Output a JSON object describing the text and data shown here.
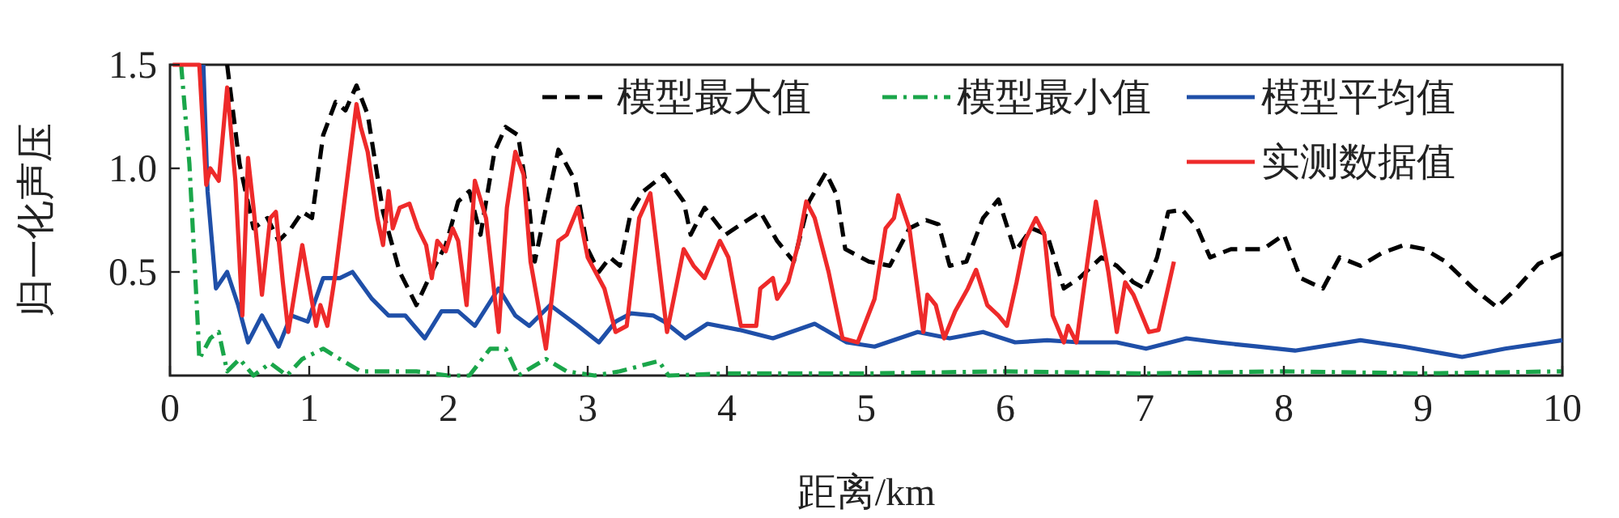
{
  "chart_data": {
    "type": "line",
    "xlabel": "距离/km",
    "ylabel": "归一化声压",
    "xlim": [
      0,
      10
    ],
    "ylim": [
      0,
      1.5
    ],
    "xticks": [
      0,
      1,
      2,
      3,
      4,
      5,
      6,
      7,
      8,
      9,
      10
    ],
    "yticks": [
      {
        "value": 0.5,
        "label": "0.5"
      },
      {
        "value": 1,
        "label": "1.0"
      },
      {
        "value": 1.5,
        "label": "1.5"
      }
    ],
    "legend": "top right",
    "grid": false,
    "series": [
      {
        "name": "模型最大值",
        "color": "#000000",
        "line_style": "dashed",
        "x": [
          0.41,
          0.5,
          0.6,
          0.7,
          0.78,
          0.87,
          0.95,
          1.02,
          1.1,
          1.19,
          1.26,
          1.34,
          1.42,
          1.53,
          1.65,
          1.77,
          1.88,
          1.98,
          2.07,
          2.15,
          2.23,
          2.33,
          2.41,
          2.5,
          2.58,
          2.62,
          2.7,
          2.79,
          2.91,
          3.0,
          3.08,
          3.16,
          3.23,
          3.31,
          3.4,
          3.55,
          3.69,
          3.74,
          3.84,
          3.99,
          4.1,
          4.24,
          4.36,
          4.48,
          4.59,
          4.71,
          4.79,
          4.85,
          5.02,
          5.17,
          5.31,
          5.43,
          5.52,
          5.6,
          5.72,
          5.84,
          5.95,
          6.07,
          6.19,
          6.3,
          6.42,
          6.53,
          6.69,
          6.8,
          6.92,
          7.0,
          7.09,
          7.17,
          7.27,
          7.38,
          7.47,
          7.62,
          7.73,
          7.85,
          8.0,
          8.12,
          8.28,
          8.4,
          8.55,
          8.7,
          8.86,
          9.01,
          9.16,
          9.36,
          9.53,
          9.67,
          9.83,
          10.0
        ],
        "values": [
          1.5,
          1.02,
          0.71,
          0.76,
          0.65,
          0.71,
          0.79,
          0.76,
          1.16,
          1.32,
          1.28,
          1.4,
          1.26,
          0.79,
          0.5,
          0.34,
          0.5,
          0.63,
          0.84,
          0.89,
          0.68,
          1.08,
          1.2,
          1.16,
          0.81,
          0.55,
          0.81,
          1.09,
          0.94,
          0.61,
          0.5,
          0.57,
          0.53,
          0.79,
          0.89,
          0.97,
          0.84,
          0.68,
          0.81,
          0.68,
          0.73,
          0.79,
          0.65,
          0.55,
          0.84,
          0.98,
          0.87,
          0.61,
          0.55,
          0.53,
          0.71,
          0.75,
          0.73,
          0.53,
          0.55,
          0.76,
          0.85,
          0.6,
          0.71,
          0.68,
          0.42,
          0.47,
          0.57,
          0.53,
          0.45,
          0.42,
          0.57,
          0.79,
          0.8,
          0.71,
          0.57,
          0.61,
          0.61,
          0.61,
          0.68,
          0.47,
          0.42,
          0.57,
          0.53,
          0.59,
          0.63,
          0.61,
          0.55,
          0.42,
          0.33,
          0.42,
          0.54,
          0.59
        ]
      },
      {
        "name": "模型最小值",
        "color": "#1aa64a",
        "line_style": "dashdot",
        "x": [
          0.08,
          0.14,
          0.2,
          0.21,
          0.29,
          0.35,
          0.41,
          0.5,
          0.6,
          0.72,
          0.84,
          0.95,
          1.1,
          1.22,
          1.37,
          1.57,
          1.77,
          2.0,
          2.15,
          2.3,
          2.41,
          2.5,
          2.7,
          2.85,
          3.05,
          3.23,
          3.51,
          3.58,
          4.0,
          5.0,
          6.0,
          7.0,
          8.0,
          9.0,
          10.0
        ],
        "values": [
          1.5,
          1.02,
          0.24,
          0.08,
          0.18,
          0.21,
          0.02,
          0.08,
          0.0,
          0.06,
          0.0,
          0.08,
          0.13,
          0.08,
          0.02,
          0.02,
          0.02,
          0.0,
          0.0,
          0.13,
          0.13,
          0.0,
          0.08,
          0.02,
          0.0,
          0.02,
          0.07,
          0.0,
          0.01,
          0.01,
          0.02,
          0.01,
          0.02,
          0.01,
          0.02
        ]
      },
      {
        "name": "模型平均值",
        "color": "#1f4fa8",
        "line_style": "solid",
        "x": [
          0.24,
          0.27,
          0.33,
          0.41,
          0.49,
          0.56,
          0.66,
          0.78,
          0.87,
          0.99,
          1.1,
          1.22,
          1.31,
          1.45,
          1.57,
          1.69,
          1.83,
          1.95,
          2.07,
          2.19,
          2.36,
          2.48,
          2.58,
          2.73,
          2.93,
          3.08,
          3.2,
          3.31,
          3.47,
          3.55,
          3.7,
          3.86,
          4.09,
          4.33,
          4.63,
          4.86,
          5.06,
          5.37,
          5.6,
          5.84,
          6.07,
          6.3,
          6.53,
          6.8,
          7.01,
          7.3,
          7.53,
          7.81,
          8.08,
          8.55,
          8.86,
          9.28,
          9.59,
          10.0
        ],
        "values": [
          1.5,
          0.89,
          0.42,
          0.5,
          0.34,
          0.16,
          0.29,
          0.14,
          0.29,
          0.26,
          0.47,
          0.47,
          0.5,
          0.37,
          0.29,
          0.29,
          0.18,
          0.31,
          0.31,
          0.24,
          0.42,
          0.29,
          0.24,
          0.34,
          0.24,
          0.16,
          0.26,
          0.3,
          0.29,
          0.26,
          0.18,
          0.25,
          0.22,
          0.18,
          0.25,
          0.16,
          0.14,
          0.21,
          0.18,
          0.21,
          0.16,
          0.17,
          0.16,
          0.16,
          0.13,
          0.18,
          0.16,
          0.14,
          0.12,
          0.17,
          0.14,
          0.09,
          0.13,
          0.17
        ]
      },
      {
        "name": "实测数据值",
        "color": "#ee2a2a",
        "line_style": "solid",
        "x": [
          0.02,
          0.21,
          0.26,
          0.29,
          0.35,
          0.41,
          0.47,
          0.52,
          0.56,
          0.6,
          0.66,
          0.72,
          0.76,
          0.81,
          0.85,
          0.95,
          1.05,
          1.08,
          1.13,
          1.19,
          1.34,
          1.37,
          1.42,
          1.49,
          1.53,
          1.57,
          1.6,
          1.65,
          1.72,
          1.78,
          1.84,
          1.88,
          1.92,
          1.98,
          2.03,
          2.07,
          2.13,
          2.19,
          2.27,
          2.36,
          2.42,
          2.48,
          2.54,
          2.59,
          2.7,
          2.79,
          2.85,
          2.93,
          3.0,
          3.12,
          3.2,
          3.28,
          3.37,
          3.45,
          3.57,
          3.69,
          3.76,
          3.84,
          3.95,
          4.01,
          4.1,
          4.21,
          4.24,
          4.33,
          4.36,
          4.44,
          4.51,
          4.57,
          4.63,
          4.73,
          4.83,
          4.94,
          5.06,
          5.14,
          5.2,
          5.23,
          5.31,
          5.41,
          5.44,
          5.5,
          5.56,
          5.64,
          5.73,
          5.79,
          5.87,
          5.95,
          6.01,
          6.08,
          6.14,
          6.22,
          6.28,
          6.34,
          6.42,
          6.45,
          6.51,
          6.59,
          6.65,
          6.74,
          6.8,
          6.86,
          6.92,
          7.03,
          7.1,
          7.21
        ],
        "values": [
          1.5,
          1.5,
          0.92,
          1.0,
          0.94,
          1.39,
          0.94,
          0.29,
          1.05,
          0.81,
          0.39,
          0.76,
          0.79,
          0.45,
          0.21,
          0.63,
          0.24,
          0.34,
          0.24,
          0.5,
          1.31,
          1.2,
          1.08,
          0.76,
          0.63,
          0.89,
          0.71,
          0.81,
          0.83,
          0.71,
          0.63,
          0.47,
          0.65,
          0.6,
          0.71,
          0.65,
          0.34,
          0.94,
          0.76,
          0.21,
          0.81,
          1.08,
          0.97,
          0.55,
          0.13,
          0.65,
          0.68,
          0.81,
          0.57,
          0.42,
          0.21,
          0.24,
          0.76,
          0.88,
          0.21,
          0.61,
          0.53,
          0.47,
          0.65,
          0.57,
          0.24,
          0.24,
          0.42,
          0.47,
          0.37,
          0.45,
          0.63,
          0.84,
          0.76,
          0.5,
          0.18,
          0.16,
          0.37,
          0.71,
          0.76,
          0.87,
          0.71,
          0.21,
          0.39,
          0.34,
          0.18,
          0.31,
          0.42,
          0.51,
          0.34,
          0.29,
          0.24,
          0.45,
          0.65,
          0.76,
          0.68,
          0.29,
          0.16,
          0.24,
          0.16,
          0.55,
          0.84,
          0.5,
          0.21,
          0.45,
          0.39,
          0.21,
          0.22,
          0.55
        ]
      }
    ]
  }
}
